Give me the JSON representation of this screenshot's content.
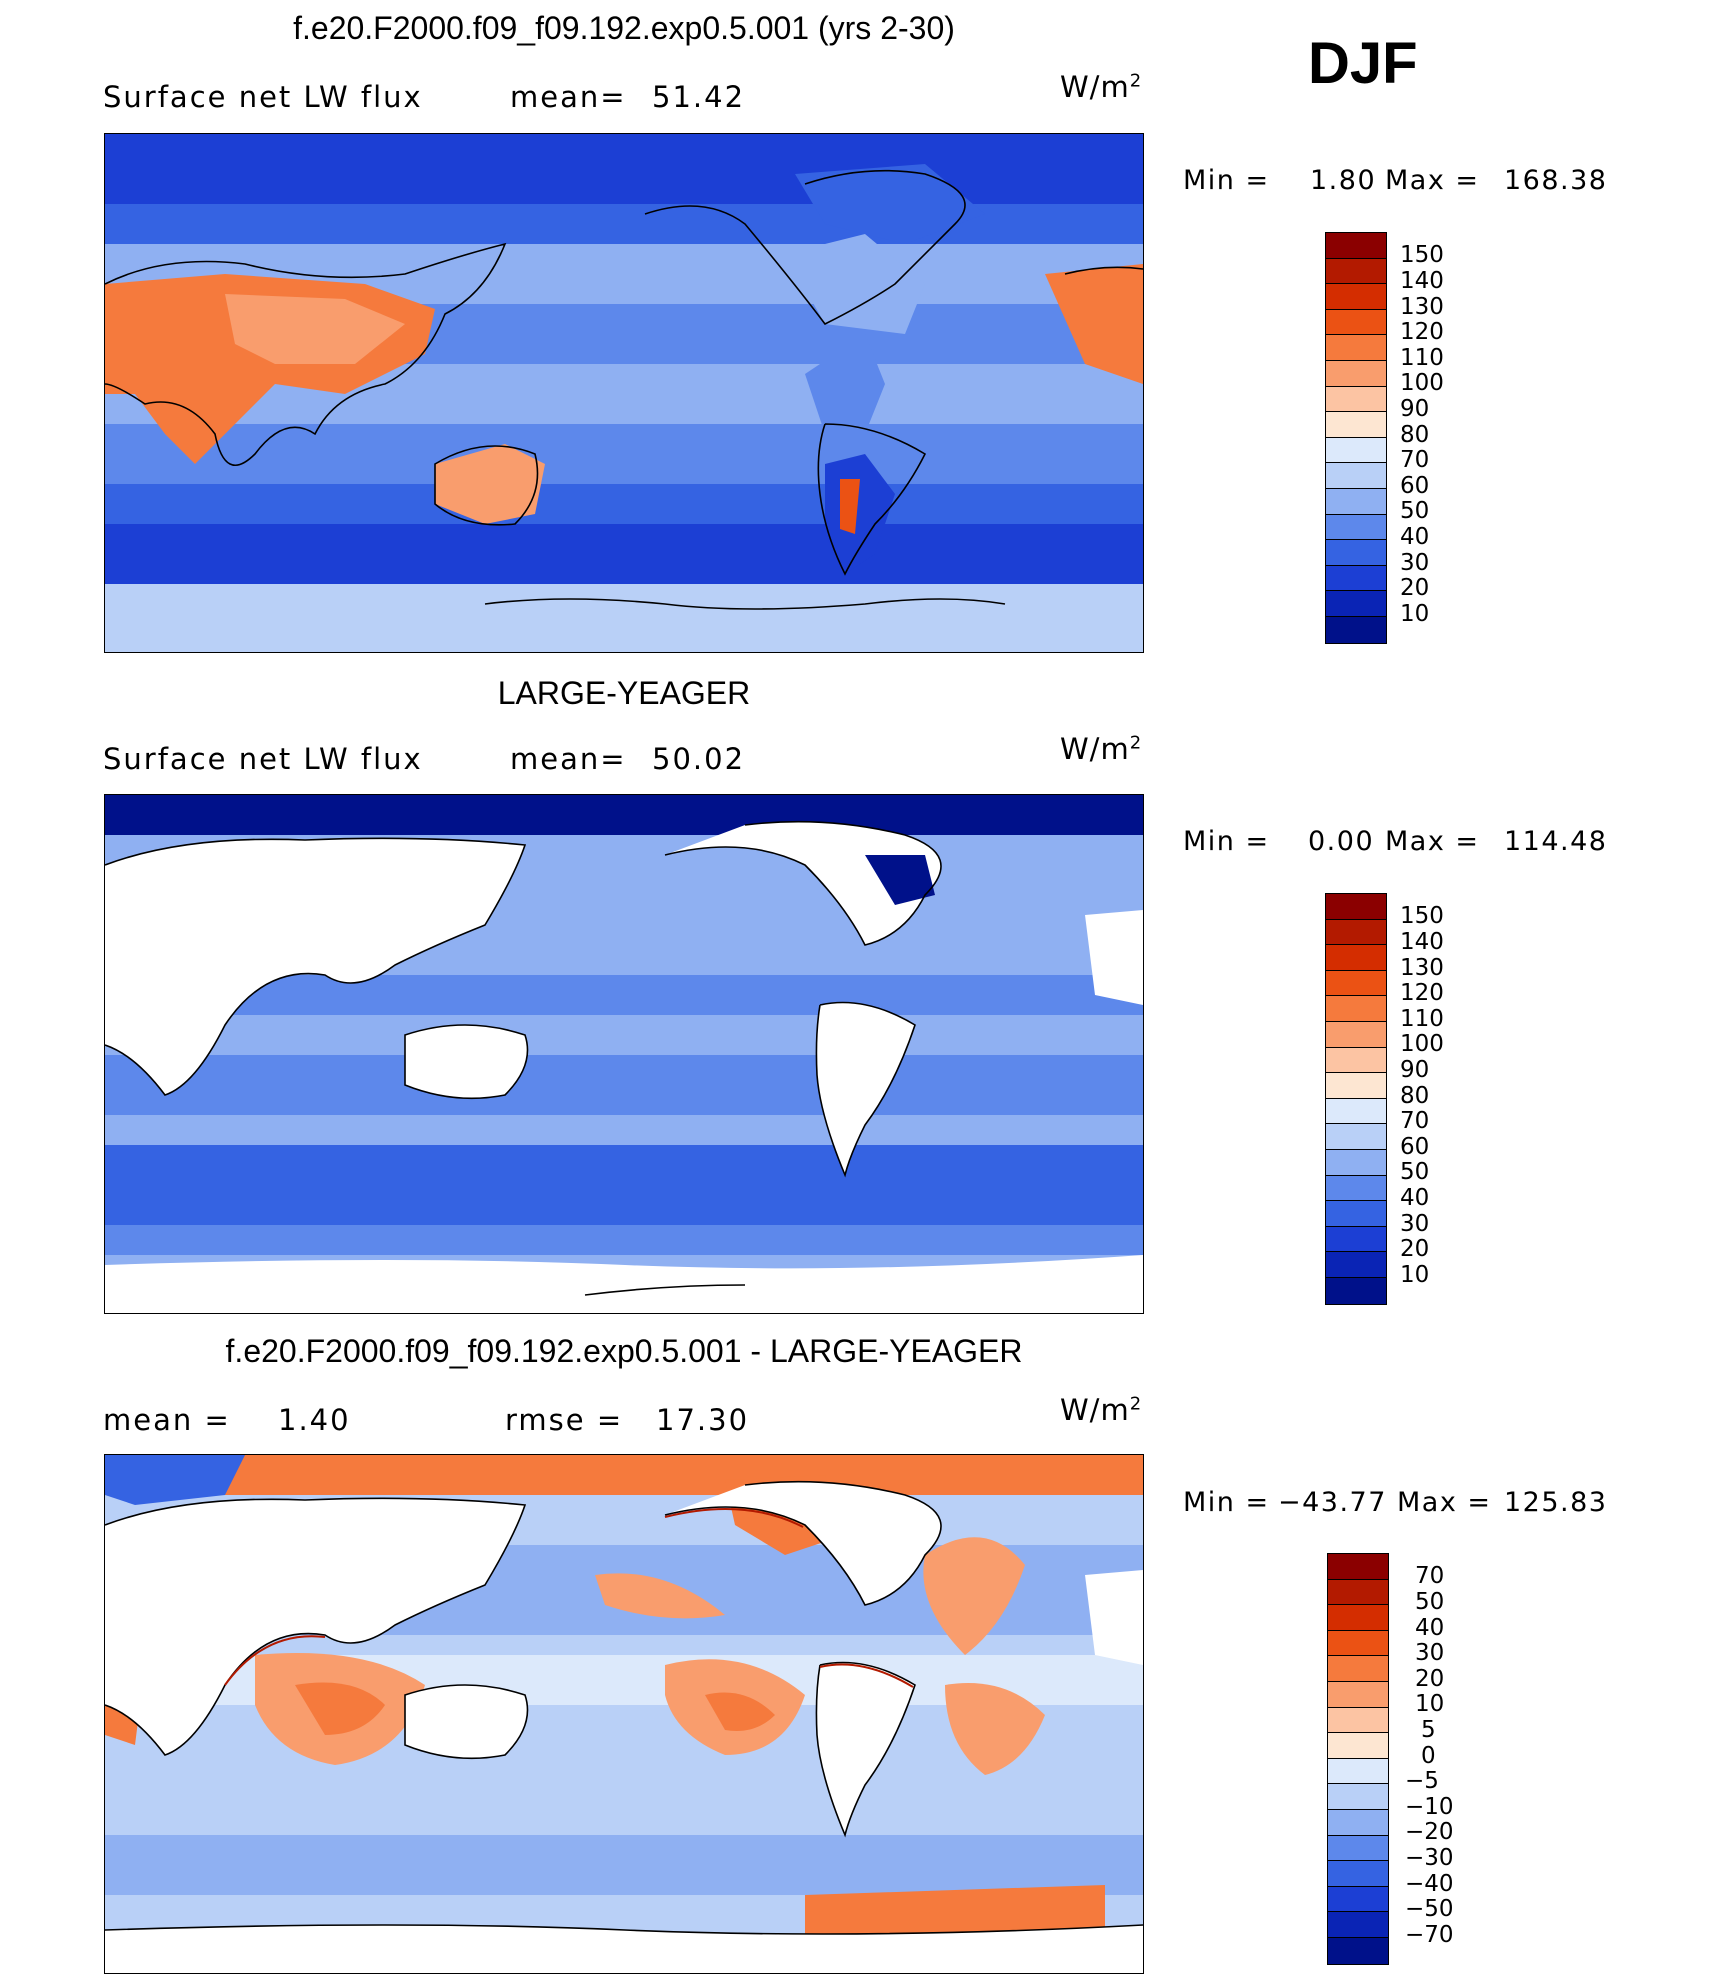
{
  "season": "DJF",
  "panels": [
    {
      "title": "f.e20.F2000.f09_f09.192.exp0.5.001 (yrs 2-30)",
      "left_label": "Surface net LW flux",
      "stat_label": "mean=",
      "stat_value": "51.42",
      "unit": "W/m",
      "unit_exp": "2",
      "min_label": "Min =",
      "min_value": "1.80",
      "max_label": "Max =",
      "max_value": "168.38",
      "colorbar_labels": [
        "150",
        "140",
        "130",
        "120",
        "110",
        "100",
        "90",
        "80",
        "70",
        "60",
        "50",
        "40",
        "30",
        "20",
        "10"
      ]
    },
    {
      "title": "LARGE-YEAGER",
      "left_label": "Surface net LW flux",
      "stat_label": "mean=",
      "stat_value": "50.02",
      "unit": "W/m",
      "unit_exp": "2",
      "min_label": "Min =",
      "min_value": "0.00",
      "max_label": "Max =",
      "max_value": "114.48",
      "colorbar_labels": [
        "150",
        "140",
        "130",
        "120",
        "110",
        "100",
        "90",
        "80",
        "70",
        "60",
        "50",
        "40",
        "30",
        "20",
        "10"
      ]
    },
    {
      "title": "f.e20.F2000.f09_f09.192.exp0.5.001 - LARGE-YEAGER",
      "left_label": "mean =",
      "left_value": "1.40",
      "stat_label": "rmse =",
      "stat_value": "17.30",
      "unit": "W/m",
      "unit_exp": "2",
      "min_label": "Min =",
      "min_value": "−43.77",
      "max_label": "Max =",
      "max_value": "125.83",
      "colorbar_labels": [
        "70",
        "50",
        "40",
        "30",
        "20",
        "10",
        "5",
        "0",
        "−5",
        "−10",
        "−20",
        "−30",
        "−40",
        "−50",
        "−70"
      ]
    }
  ],
  "colors": {
    "flux_scale": [
      "#8b0000",
      "#b31a00",
      "#d42d00",
      "#eb5214",
      "#f57a3d",
      "#f99d6d",
      "#fcc4a3",
      "#fde6d2",
      "#dce9fb",
      "#b9d0f7",
      "#8fb0f2",
      "#5d88eb",
      "#3563e2",
      "#1c3fd4",
      "#0a24b5",
      "#00118a"
    ],
    "diff_scale": [
      "#8b0000",
      "#b31a00",
      "#d42d00",
      "#eb5214",
      "#f57a3d",
      "#f99d6d",
      "#fcc4a3",
      "#fde6d2",
      "#dce9fb",
      "#b9d0f7",
      "#8fb0f2",
      "#5d88eb",
      "#3563e2",
      "#1c3fd4",
      "#0a24b5",
      "#00118a"
    ]
  }
}
